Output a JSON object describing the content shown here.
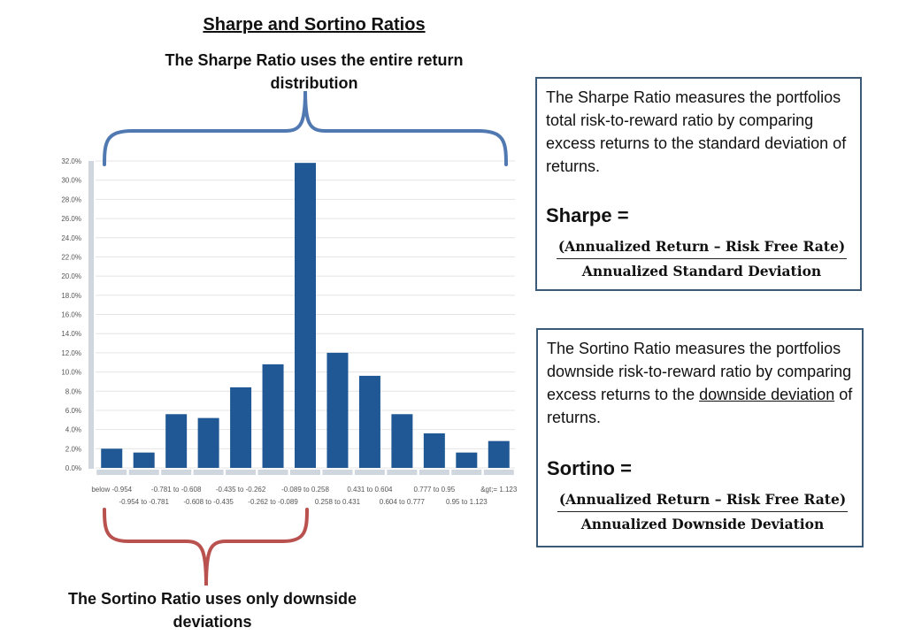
{
  "title": "Sharpe and Sortino Ratios",
  "sharpe_label": "The Sharpe Ratio uses the entire return distribution",
  "sortino_label": "The Sortino Ratio uses only downside deviations",
  "sharpe_box": {
    "text": "The Sharpe Ratio measures the portfolios total risk-to-reward ratio by comparing excess returns to the standard deviation of returns.",
    "name": "Sharpe =",
    "numerator": "(Annualized Return – Risk Free Rate)",
    "denominator": "Annualized Standard Deviation"
  },
  "sortino_box": {
    "text_before": "The Sortino Ratio measures the portfolios downside risk-to-reward ratio by comparing excess returns to the ",
    "text_underlined": "downside deviation",
    "text_after": " of returns.",
    "name": "Sortino =",
    "numerator": "(Annualized Return – Risk Free Rate)",
    "denominator": "Annualized Downside Deviation"
  },
  "colors": {
    "bar": "#1f5894",
    "sharpe_brace": "#4f79b0",
    "sortino_brace": "#b9524e",
    "box_border": "#3b5a78"
  },
  "chart_data": {
    "type": "bar",
    "categories": [
      "below -0.954",
      "-0.954 to -0.781",
      "-0.781 to -0.608",
      "-0.608 to -0.435",
      "-0.435 to -0.262",
      "-0.262 to -0.089",
      "-0.089 to 0.258",
      "0.258 to 0.431",
      "0.431 to 0.604",
      "0.604 to 0.777",
      "0.777 to 0.95",
      "0.95 to 1.123",
      "&gt;= 1.123"
    ],
    "values": [
      2.0,
      1.6,
      5.6,
      5.2,
      8.4,
      10.8,
      31.8,
      12.0,
      9.6,
      5.6,
      3.6,
      1.6,
      2.8
    ],
    "ylim": [
      0,
      32
    ],
    "yticks": [
      "0.0%",
      "2.0%",
      "4.0%",
      "6.0%",
      "8.0%",
      "10.0%",
      "12.0%",
      "14.0%",
      "16.0%",
      "18.0%",
      "20.0%",
      "22.0%",
      "24.0%",
      "26.0%",
      "28.0%",
      "30.0%",
      "32.0%"
    ],
    "grid": true
  }
}
